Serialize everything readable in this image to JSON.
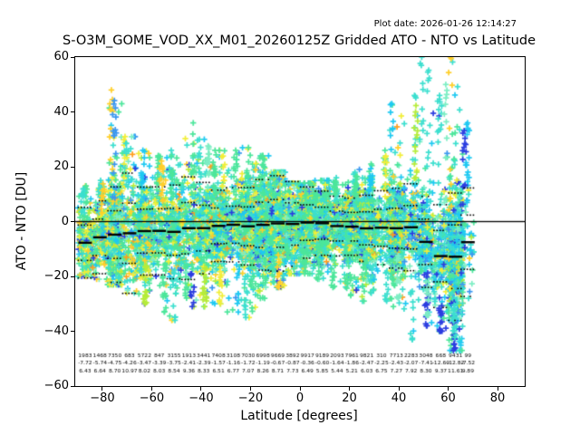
{
  "chart_data": {
    "type": "scatter",
    "title": "S-O3M_GOME_VOD_XX_M01_20260125Z Gridded ATO - NTO vs Latitude",
    "plot_date_label": "Plot date: 2026-01-26 12:14:27",
    "xlabel": "Latitude [degrees]",
    "ylabel": "ATO - NTO [DU]",
    "xlim": [
      -91,
      91
    ],
    "ylim": [
      -60,
      60
    ],
    "xticks": [
      -80,
      -60,
      -40,
      -20,
      0,
      20,
      40,
      60,
      80
    ],
    "yticks": [
      -60,
      -40,
      -20,
      0,
      20,
      40,
      60
    ],
    "grid": false,
    "marker": "plus",
    "zero_line_y": 0,
    "legend": "none",
    "palette": [
      {
        "name": "spring-green",
        "hex": "#4ce69b"
      },
      {
        "name": "mint",
        "hex": "#7deec4"
      },
      {
        "name": "turquoise",
        "hex": "#3cdfcf"
      },
      {
        "name": "cyan",
        "hex": "#1ec9f2"
      },
      {
        "name": "sky-blue",
        "hex": "#3b97f0"
      },
      {
        "name": "royal-blue",
        "hex": "#2b3de0"
      },
      {
        "name": "green-yellow",
        "hex": "#b5ec39"
      },
      {
        "name": "yellow",
        "hex": "#f1ee38"
      },
      {
        "name": "gold",
        "hex": "#ffcf2a"
      },
      {
        "name": "orange",
        "hex": "#ff9e1e"
      }
    ],
    "color_zones": [
      {
        "from": -91,
        "to": -55,
        "weights": {
          "spring-green": 0.32,
          "mint": 0.06,
          "turquoise": 0.15,
          "cyan": 0.1,
          "sky-blue": 0.03,
          "royal-blue": 0.03,
          "green-yellow": 0.08,
          "yellow": 0.13,
          "gold": 0.08,
          "orange": 0.02
        }
      },
      {
        "from": -55,
        "to": 40,
        "weights": {
          "spring-green": 0.38,
          "mint": 0.05,
          "turquoise": 0.18,
          "cyan": 0.11,
          "sky-blue": 0.03,
          "royal-blue": 0.04,
          "green-yellow": 0.05,
          "yellow": 0.09,
          "gold": 0.05,
          "orange": 0.02
        }
      },
      {
        "from": 40,
        "to": 91,
        "weights": {
          "spring-green": 0.17,
          "mint": 0.08,
          "turquoise": 0.27,
          "cyan": 0.2,
          "sky-blue": 0.07,
          "royal-blue": 0.08,
          "green-yellow": 0.04,
          "yellow": 0.05,
          "gold": 0.04,
          "orange": 0.0
        }
      }
    ],
    "bins": [
      {
        "lat": -87,
        "count": 1983,
        "mean": -7.72,
        "std": 6.43,
        "ymax": 13,
        "ymin": -20
      },
      {
        "lat": -81,
        "count": 1468,
        "mean": -5.74,
        "std": 6.64,
        "ymax": 15,
        "ymin": -21
      },
      {
        "lat": -75,
        "count": 7350,
        "mean": -4.75,
        "std": 8.7,
        "ymax": 48,
        "ymin": -23
      },
      {
        "lat": -69,
        "count": 683,
        "mean": -4.26,
        "std": 10.97,
        "ymax": 31,
        "ymin": -26
      },
      {
        "lat": -63,
        "count": 5722,
        "mean": -3.47,
        "std": 8.02,
        "ymax": 26,
        "ymin": -30
      },
      {
        "lat": -57,
        "count": 847,
        "mean": -3.39,
        "std": 8.03,
        "ymax": 24,
        "ymin": -33
      },
      {
        "lat": -51,
        "count": 3155,
        "mean": -3.75,
        "std": 8.54,
        "ymax": 26,
        "ymin": -36
      },
      {
        "lat": -45,
        "count": 1913,
        "mean": -2.41,
        "std": 9.36,
        "ymax": 36,
        "ymin": -31
      },
      {
        "lat": -39,
        "count": 3441,
        "mean": -2.39,
        "std": 8.33,
        "ymax": 30,
        "ymin": -31
      },
      {
        "lat": -33,
        "count": 7408,
        "mean": -1.57,
        "std": 6.51,
        "ymax": 26,
        "ymin": -30
      },
      {
        "lat": -27,
        "count": 3108,
        "mean": -1.16,
        "std": 6.77,
        "ymax": 26,
        "ymin": -33
      },
      {
        "lat": -21,
        "count": 7030,
        "mean": -1.72,
        "std": 7.07,
        "ymax": 27,
        "ymin": -35
      },
      {
        "lat": -15,
        "count": 6998,
        "mean": -1.19,
        "std": 8.26,
        "ymax": 24,
        "ymin": -28
      },
      {
        "lat": -9,
        "count": 9669,
        "mean": -0.67,
        "std": 8.71,
        "ymax": 18,
        "ymin": -24
      },
      {
        "lat": -3,
        "count": 3892,
        "mean": -0.87,
        "std": 7.73,
        "ymax": 14,
        "ymin": -19
      },
      {
        "lat": 3,
        "count": 9917,
        "mean": -0.36,
        "std": 6.49,
        "ymax": 14,
        "ymin": -19
      },
      {
        "lat": 9,
        "count": 9189,
        "mean": -0.6,
        "std": 5.85,
        "ymax": 15,
        "ymin": -21
      },
      {
        "lat": 15,
        "count": 2093,
        "mean": -1.64,
        "std": 5.44,
        "ymax": 16,
        "ymin": -24
      },
      {
        "lat": 21,
        "count": 7961,
        "mean": -1.86,
        "std": 5.21,
        "ymax": 18,
        "ymin": -27
      },
      {
        "lat": 27,
        "count": 9821,
        "mean": -2.47,
        "std": 6.03,
        "ymax": 21,
        "ymin": -29
      },
      {
        "lat": 33,
        "count": 310,
        "mean": -2.25,
        "std": 6.75,
        "ymax": 26,
        "ymin": -29
      },
      {
        "lat": 39,
        "count": 7713,
        "mean": -2.43,
        "std": 7.27,
        "ymax": 43,
        "ymin": -31
      },
      {
        "lat": 45,
        "count": 2283,
        "mean": -2.07,
        "std": 7.92,
        "ymax": 46,
        "ymin": -43
      },
      {
        "lat": 51,
        "count": 3048,
        "mean": -7.41,
        "std": 8.3,
        "ymax": 60,
        "ymin": -38
      },
      {
        "lat": 57,
        "count": 668,
        "mean": -12.6,
        "std": 9.37,
        "ymax": 50,
        "ymin": -40
      },
      {
        "lat": 63,
        "count": 9431,
        "mean": -12.82,
        "std": 11.61,
        "ymax": 60,
        "ymin": -47
      },
      {
        "lat": 68,
        "count": 99,
        "mean": -7.52,
        "std": 9.89,
        "ymax": 36,
        "ymin": -28
      }
    ],
    "stats_rows": {
      "description": "three overlapping rows of per-bin statistics printed near y=-50",
      "rows": [
        "count",
        "mean",
        "std"
      ],
      "y_positions": [
        -48.8,
        -51.6,
        -54.4
      ]
    },
    "overlays": {
      "solid_zero_line": true,
      "bin_mean_dashes": true,
      "dotted_sigma_rows": [
        1,
        2
      ]
    }
  }
}
